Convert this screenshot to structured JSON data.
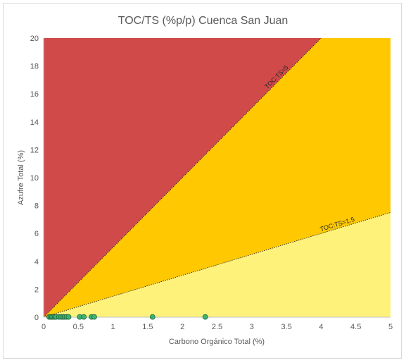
{
  "chart_data": {
    "type": "scatter",
    "title": "TOC/TS (%p/p) Cuenca San Juan",
    "xlabel": "Carbono Orgánico Total (%)",
    "ylabel": "Azufre Total (%)",
    "xlim": [
      0,
      5
    ],
    "ylim": [
      0,
      20
    ],
    "x_ticks": [
      "0",
      "0.5",
      "1",
      "1.5",
      "2",
      "2.5",
      "3",
      "3.5",
      "4",
      "4.5",
      "5"
    ],
    "y_ticks": [
      "0",
      "2",
      "4",
      "6",
      "8",
      "10",
      "12",
      "14",
      "16",
      "18",
      "20"
    ],
    "x_tick_values": [
      0,
      0.5,
      1,
      1.5,
      2,
      2.5,
      3,
      3.5,
      4,
      4.5,
      5
    ],
    "y_tick_values": [
      0,
      2,
      4,
      6,
      8,
      10,
      12,
      14,
      16,
      18,
      20
    ],
    "grid": false,
    "regions": [
      {
        "upper_ratio": null,
        "lower_ratio": 5,
        "color": "#d04a4a"
      },
      {
        "upper_ratio": 5,
        "lower_ratio": 1.5,
        "color": "#ffc800"
      },
      {
        "upper_ratio": 1.5,
        "lower_ratio": 0,
        "color": "#fff27a"
      }
    ],
    "reference_lines": [
      {
        "label": "TOC:TS=5",
        "ratio": 5,
        "label_x": 3.4
      },
      {
        "label": "TOC:TS=1.5",
        "ratio": 1.5,
        "label_x": 4.25
      }
    ],
    "points": {
      "color": "#3cb371",
      "x": [
        0.08,
        0.1,
        0.12,
        0.14,
        0.16,
        0.18,
        0.22,
        0.25,
        0.28,
        0.3,
        0.33,
        0.36,
        0.52,
        0.58,
        0.69,
        0.73,
        1.57,
        2.33
      ],
      "y": [
        0.02,
        0.02,
        0.02,
        0.02,
        0.02,
        0.02,
        0.02,
        0.02,
        0.02,
        0.02,
        0.02,
        0.02,
        0.02,
        0.02,
        0.02,
        0.02,
        0.02,
        0.02
      ]
    }
  }
}
